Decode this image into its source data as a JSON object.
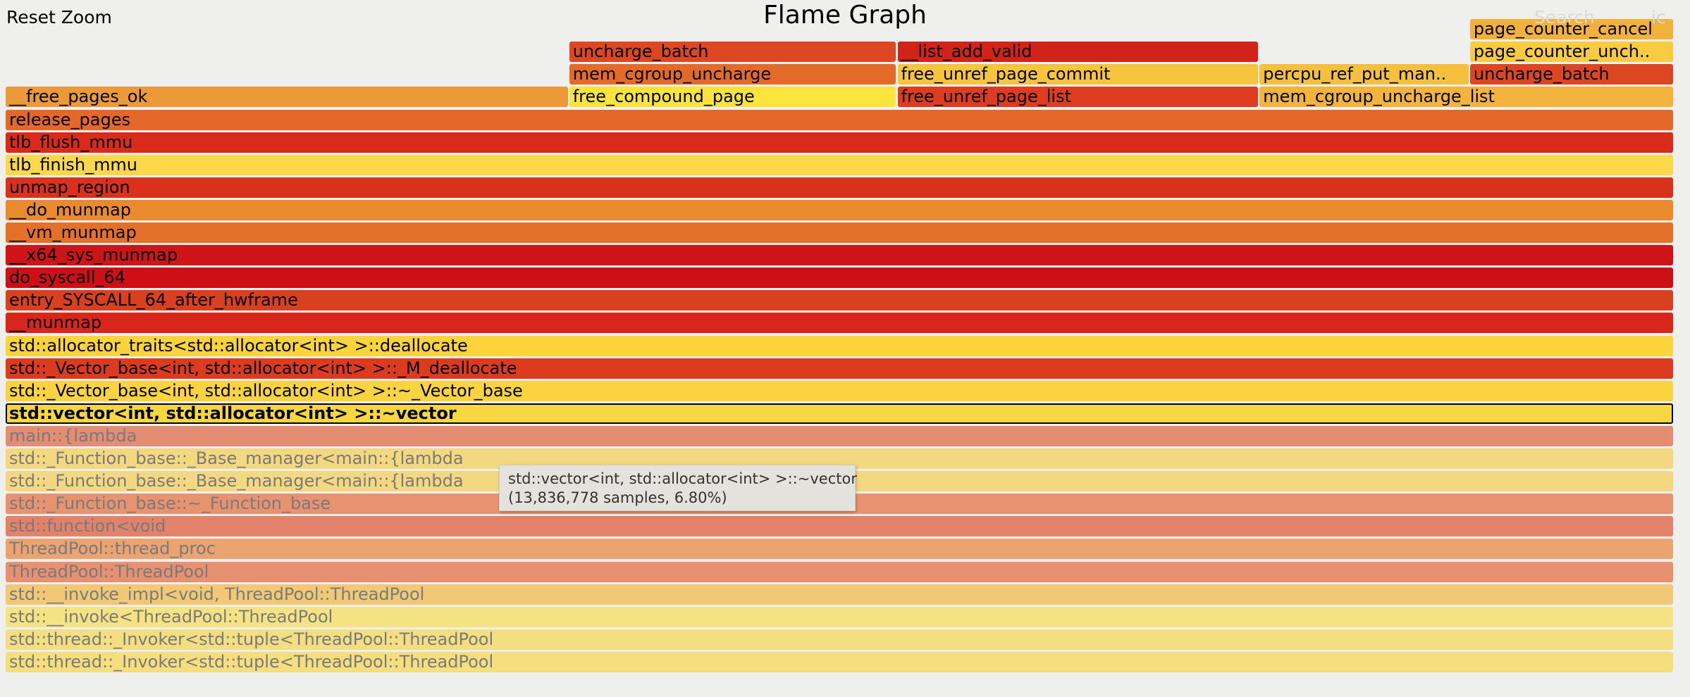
{
  "header": {
    "reset_zoom_label": "Reset Zoom",
    "title": "Flame Graph",
    "search_label": "Search",
    "matched_label": "ic"
  },
  "tooltip": {
    "name": "std::vector<int, std::allocator<int> >::~vector",
    "detail": "(13,836,778 samples, 6.80%)"
  },
  "frames": [
    {
      "label": "std::thread::_Invoker<std::tuple<ThreadPool::ThreadPool",
      "depth": 0,
      "start": 0,
      "end": 1,
      "color": "#f5de7e",
      "dim": true
    },
    {
      "label": "std::thread::_Invoker<std::tuple<ThreadPool::ThreadPool",
      "depth": 1,
      "start": 0,
      "end": 1,
      "color": "#f3df81",
      "dim": true
    },
    {
      "label": "std::__invoke<ThreadPool::ThreadPool",
      "depth": 2,
      "start": 0,
      "end": 1,
      "color": "#f4e283",
      "dim": true
    },
    {
      "label": "std::__invoke_impl<void, ThreadPool::ThreadPool",
      "depth": 3,
      "start": 0,
      "end": 1,
      "color": "#f1c876",
      "dim": true
    },
    {
      "label": "ThreadPool::ThreadPool",
      "depth": 4,
      "start": 0,
      "end": 1,
      "color": "#e79171",
      "dim": true
    },
    {
      "label": "ThreadPool::thread_proc",
      "depth": 5,
      "start": 0,
      "end": 1,
      "color": "#eba471",
      "dim": true
    },
    {
      "label": "std::function<void",
      "depth": 6,
      "start": 0,
      "end": 1,
      "color": "#e3826b",
      "dim": true
    },
    {
      "label": "std::_Function_base::~_Function_base",
      "depth": 7,
      "start": 0,
      "end": 1,
      "color": "#e89370",
      "dim": true
    },
    {
      "label": "std::_Function_base::_Base_manager<main::{lambda",
      "depth": 8,
      "start": 0,
      "end": 1,
      "color": "#f3d881",
      "dim": true
    },
    {
      "label": "std::_Function_base::_Base_manager<main::{lambda",
      "depth": 9,
      "start": 0,
      "end": 1,
      "color": "#f3d880",
      "dim": true
    },
    {
      "label": "main::{lambda",
      "depth": 10,
      "start": 0,
      "end": 1,
      "color": "#e38d72",
      "dim": true
    },
    {
      "label": "std::vector<int, std::allocator<int> >::~vector",
      "depth": 11,
      "start": 0,
      "end": 1,
      "color": "#f7d740",
      "dim": false,
      "selected": true
    },
    {
      "label": "std::_Vector_base<int, std::allocator<int> >::~_Vector_base",
      "depth": 12,
      "start": 0,
      "end": 1,
      "color": "#fad340",
      "dim": false
    },
    {
      "label": "std::_Vector_base<int, std::allocator<int> >::_M_deallocate",
      "depth": 13,
      "start": 0,
      "end": 1,
      "color": "#dd3b1f",
      "dim": false
    },
    {
      "label": "std::allocator_traits<std::allocator<int> >::deallocate",
      "depth": 14,
      "start": 0,
      "end": 1,
      "color": "#fbd33a",
      "dim": false
    },
    {
      "label": "__munmap",
      "depth": 15,
      "start": 0,
      "end": 1,
      "color": "#d9261c",
      "dim": false
    },
    {
      "label": "entry_SYSCALL_64_after_hwframe",
      "depth": 16,
      "start": 0,
      "end": 1,
      "color": "#d9401f",
      "dim": false
    },
    {
      "label": "do_syscall_64",
      "depth": 17,
      "start": 0,
      "end": 1,
      "color": "#cf0f16",
      "dim": false
    },
    {
      "label": "__x64_sys_munmap",
      "depth": 18,
      "start": 0,
      "end": 1,
      "color": "#cf1417",
      "dim": false
    },
    {
      "label": "__vm_munmap",
      "depth": 19,
      "start": 0,
      "end": 1,
      "color": "#e4702a",
      "dim": false
    },
    {
      "label": "__do_munmap",
      "depth": 20,
      "start": 0,
      "end": 1,
      "color": "#e98a2e",
      "dim": false
    },
    {
      "label": "unmap_region",
      "depth": 21,
      "start": 0,
      "end": 1,
      "color": "#d9311c",
      "dim": false
    },
    {
      "label": "tlb_finish_mmu",
      "depth": 22,
      "start": 0,
      "end": 1,
      "color": "#fad84a",
      "dim": false
    },
    {
      "label": "tlb_flush_mmu",
      "depth": 23,
      "start": 0,
      "end": 1,
      "color": "#d92a1c",
      "dim": false
    },
    {
      "label": "release_pages",
      "depth": 24,
      "start": 0,
      "end": 1,
      "color": "#e4682a",
      "dim": false
    },
    {
      "label": "__free_pages_ok",
      "depth": 25,
      "start": 0,
      "end": 0.3377,
      "color": "#eb9a37",
      "dim": false
    },
    {
      "label": "free_compound_page",
      "depth": 25,
      "start": 0.3377,
      "end": 0.5344,
      "color": "#fbe43c",
      "dim": false
    },
    {
      "label": "free_unref_page_list",
      "depth": 25,
      "start": 0.5344,
      "end": 0.7514,
      "color": "#dd3c20",
      "dim": false
    },
    {
      "label": "mem_cgroup_uncharge_list",
      "depth": 25,
      "start": 0.7514,
      "end": 1,
      "color": "#f2b43d",
      "dim": false
    },
    {
      "label": "mem_cgroup_uncharge",
      "depth": 26,
      "start": 0.3377,
      "end": 0.5344,
      "color": "#e46a2a",
      "dim": false
    },
    {
      "label": "free_unref_page_commit",
      "depth": 26,
      "start": 0.5344,
      "end": 0.7514,
      "color": "#f6c43d",
      "dim": false
    },
    {
      "label": "percpu_ref_put_man..",
      "depth": 26,
      "start": 0.7514,
      "end": 0.8775,
      "color": "#f4c03e",
      "dim": false
    },
    {
      "label": "uncharge_batch",
      "depth": 26,
      "start": 0.8775,
      "end": 1,
      "color": "#dd4622",
      "dim": false
    },
    {
      "label": "uncharge_batch",
      "depth": 27,
      "start": 0.3377,
      "end": 0.5344,
      "color": "#dd4822",
      "dim": false
    },
    {
      "label": "__list_add_valid",
      "depth": 27,
      "start": 0.5344,
      "end": 0.7514,
      "color": "#d22319",
      "dim": false
    },
    {
      "label": "page_counter_unch..",
      "depth": 27,
      "start": 0.8775,
      "end": 1,
      "color": "#f9cb40",
      "dim": false
    },
    {
      "label": "page_counter_cancel",
      "depth": 28,
      "start": 0.8775,
      "end": 1,
      "color": "#f1b13b",
      "dim": false
    }
  ]
}
